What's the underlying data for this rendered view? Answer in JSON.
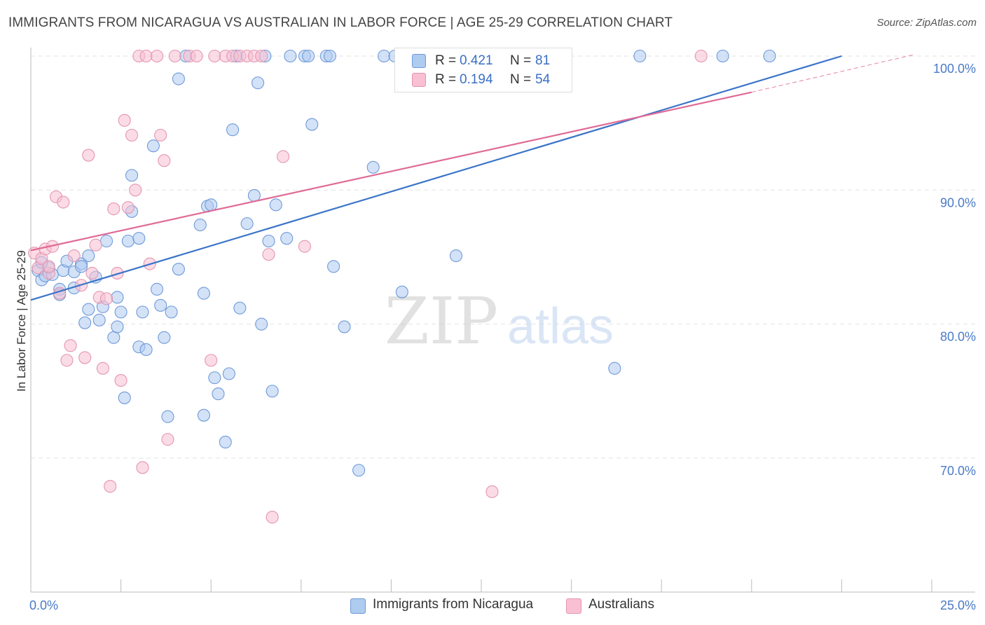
{
  "header": {
    "title": "IMMIGRANTS FROM NICARAGUA VS AUSTRALIAN IN LABOR FORCE | AGE 25-29 CORRELATION CHART",
    "source": "Source: ZipAtlas.com"
  },
  "watermark": {
    "zip": "ZIP",
    "atlas": "atlas"
  },
  "legend": {
    "r_label": "R =",
    "n_label": "N =",
    "entries": [
      {
        "name": "Immigrants from Nicaragua",
        "r": "0.421",
        "n": "81",
        "fill": "#aecbf0",
        "stroke": "#6f9ad8"
      },
      {
        "name": "Australians",
        "r": "0.194",
        "n": "54",
        "fill": "#f8c0d2",
        "stroke": "#e595b0"
      }
    ]
  },
  "chart_data": {
    "type": "scatter",
    "title": "IMMIGRANTS FROM NICARAGUA VS AUSTRALIAN IN LABOR FORCE | AGE 25-29 CORRELATION CHART",
    "xlabel": "",
    "ylabel": "In Labor Force | Age 25-29",
    "xlim": [
      0,
      25
    ],
    "ylim": [
      60,
      101.2
    ],
    "x_tick_labels": [
      "0.0%",
      "25.0%"
    ],
    "y_ticks": [
      70,
      80,
      90,
      100
    ],
    "y_tick_labels": [
      "70.0%",
      "80.0%",
      "90.0%",
      "100.0%"
    ],
    "grid": true,
    "legend_position": "top-center",
    "series": [
      {
        "name": "Immigrants from Nicaragua",
        "color": "#6f9ad8",
        "fill": "#aecbf0",
        "line_color": "#3a74c8",
        "trend": [
          [
            0,
            81.8
          ],
          [
            22.5,
            100.0
          ]
        ],
        "points": [
          [
            0.2,
            84.0
          ],
          [
            0.3,
            83.3
          ],
          [
            0.4,
            83.6
          ],
          [
            0.5,
            84.2
          ],
          [
            0.6,
            83.7
          ],
          [
            0.8,
            82.6
          ],
          [
            0.8,
            82.2
          ],
          [
            0.9,
            84.0
          ],
          [
            1.0,
            84.7
          ],
          [
            1.2,
            83.9
          ],
          [
            1.2,
            82.7
          ],
          [
            1.4,
            84.5
          ],
          [
            1.5,
            80.1
          ],
          [
            1.6,
            81.1
          ],
          [
            1.6,
            85.1
          ],
          [
            1.8,
            83.5
          ],
          [
            1.9,
            80.3
          ],
          [
            2.0,
            81.3
          ],
          [
            2.1,
            86.2
          ],
          [
            2.3,
            79.0
          ],
          [
            2.4,
            79.8
          ],
          [
            2.5,
            80.9
          ],
          [
            2.6,
            74.5
          ],
          [
            2.7,
            86.2
          ],
          [
            2.8,
            88.4
          ],
          [
            2.8,
            91.1
          ],
          [
            3.0,
            86.4
          ],
          [
            3.0,
            78.3
          ],
          [
            3.1,
            80.9
          ],
          [
            3.2,
            78.1
          ],
          [
            3.4,
            93.3
          ],
          [
            3.5,
            82.6
          ],
          [
            3.6,
            81.4
          ],
          [
            3.7,
            79.0
          ],
          [
            3.8,
            73.1
          ],
          [
            3.9,
            80.9
          ],
          [
            4.1,
            98.3
          ],
          [
            4.1,
            84.1
          ],
          [
            4.3,
            100.0
          ],
          [
            4.7,
            87.4
          ],
          [
            4.8,
            73.2
          ],
          [
            4.8,
            82.3
          ],
          [
            4.9,
            88.8
          ],
          [
            5.0,
            88.9
          ],
          [
            5.1,
            76.0
          ],
          [
            5.2,
            74.8
          ],
          [
            5.4,
            71.2
          ],
          [
            5.5,
            76.3
          ],
          [
            5.6,
            94.5
          ],
          [
            5.7,
            100.0
          ],
          [
            5.8,
            81.2
          ],
          [
            6.0,
            87.5
          ],
          [
            6.2,
            89.6
          ],
          [
            6.3,
            98.0
          ],
          [
            6.4,
            80.0
          ],
          [
            6.5,
            100.0
          ],
          [
            6.6,
            86.2
          ],
          [
            6.7,
            75.0
          ],
          [
            6.8,
            88.9
          ],
          [
            7.1,
            86.4
          ],
          [
            7.2,
            100.0
          ],
          [
            7.6,
            100.0
          ],
          [
            7.7,
            100.0
          ],
          [
            7.8,
            94.9
          ],
          [
            8.2,
            100.0
          ],
          [
            8.4,
            84.3
          ],
          [
            8.7,
            79.8
          ],
          [
            9.1,
            69.1
          ],
          [
            9.5,
            91.7
          ],
          [
            9.8,
            100.0
          ],
          [
            10.1,
            100.0
          ],
          [
            10.3,
            82.4
          ],
          [
            11.8,
            85.1
          ],
          [
            16.2,
            76.7
          ],
          [
            16.9,
            100.0
          ],
          [
            19.2,
            100.0
          ],
          [
            20.5,
            100.0
          ],
          [
            0.3,
            84.6
          ],
          [
            1.4,
            84.3
          ],
          [
            2.4,
            82.0
          ],
          [
            8.3,
            100.0
          ]
        ]
      },
      {
        "name": "Australians",
        "color": "#e595b0",
        "fill": "#f8c0d2",
        "line_color": "#e06a96",
        "trend": [
          [
            0,
            85.5
          ],
          [
            20.0,
            97.3
          ]
        ],
        "trend_dashed": [
          [
            20.0,
            97.3
          ],
          [
            24.5,
            100.1
          ]
        ],
        "points": [
          [
            0.1,
            85.3
          ],
          [
            0.2,
            84.2
          ],
          [
            0.3,
            84.9
          ],
          [
            0.4,
            85.6
          ],
          [
            0.5,
            83.8
          ],
          [
            0.6,
            85.8
          ],
          [
            0.7,
            89.5
          ],
          [
            0.8,
            82.3
          ],
          [
            0.9,
            89.1
          ],
          [
            1.0,
            77.3
          ],
          [
            1.1,
            78.4
          ],
          [
            1.2,
            85.1
          ],
          [
            1.4,
            82.9
          ],
          [
            1.5,
            77.5
          ],
          [
            1.6,
            92.6
          ],
          [
            1.7,
            83.8
          ],
          [
            1.8,
            85.9
          ],
          [
            1.9,
            82.0
          ],
          [
            2.0,
            76.7
          ],
          [
            2.1,
            81.9
          ],
          [
            2.2,
            67.9
          ],
          [
            2.3,
            88.6
          ],
          [
            2.4,
            83.8
          ],
          [
            2.5,
            75.8
          ],
          [
            2.6,
            95.2
          ],
          [
            2.7,
            88.7
          ],
          [
            2.8,
            94.1
          ],
          [
            2.9,
            90.0
          ],
          [
            3.0,
            100.0
          ],
          [
            3.1,
            69.3
          ],
          [
            3.2,
            100.0
          ],
          [
            3.3,
            84.5
          ],
          [
            3.5,
            100.0
          ],
          [
            3.6,
            94.1
          ],
          [
            3.7,
            92.2
          ],
          [
            3.8,
            71.4
          ],
          [
            4.0,
            100.0
          ],
          [
            4.4,
            100.0
          ],
          [
            4.6,
            100.0
          ],
          [
            5.0,
            77.3
          ],
          [
            5.1,
            100.0
          ],
          [
            5.4,
            100.0
          ],
          [
            5.6,
            100.0
          ],
          [
            5.8,
            100.0
          ],
          [
            6.0,
            100.0
          ],
          [
            6.2,
            100.0
          ],
          [
            6.4,
            100.0
          ],
          [
            6.6,
            85.2
          ],
          [
            6.7,
            65.6
          ],
          [
            7.0,
            92.5
          ],
          [
            7.6,
            85.8
          ],
          [
            12.8,
            67.5
          ],
          [
            18.6,
            100.0
          ],
          [
            0.5,
            84.3
          ]
        ]
      }
    ]
  }
}
